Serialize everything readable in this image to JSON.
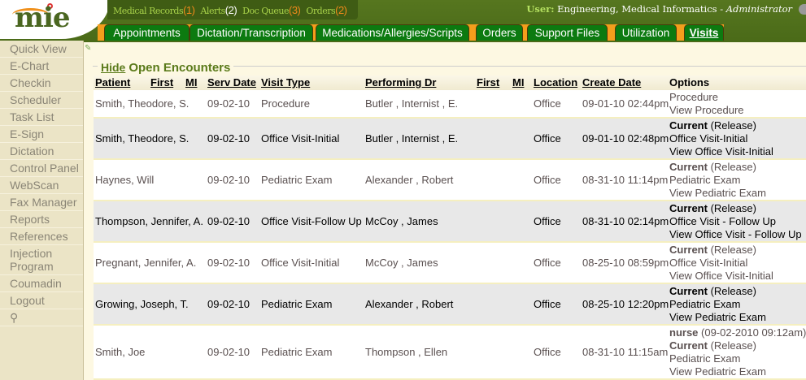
{
  "header": {
    "logo": "mie",
    "topnav": [
      {
        "label": "Medical Records",
        "count": "(1)"
      },
      {
        "label": "Alerts",
        "count": "(2)"
      },
      {
        "label": "Doc Queue",
        "count": "(3)"
      },
      {
        "label": "Orders",
        "count": "(2)"
      }
    ],
    "user_label": "User:",
    "user_name": "Engineering, Medical Informatics - ",
    "user_role": "Administrator"
  },
  "tabs": [
    "Appointments",
    "Dictation/Transcription",
    "Medications/Allergies/Scripts",
    "Orders",
    "Support Files",
    "Utilization",
    "Visits"
  ],
  "active_tab": "Visits",
  "sidebar": [
    "Quick View",
    "E-Chart",
    "Checkin",
    "Scheduler",
    "Task List",
    "E-Sign",
    "Dictation",
    "Control Panel",
    "WebScan",
    "Fax Manager",
    "Reports",
    "References",
    "Injection Program",
    "Coumadin",
    "Logout"
  ],
  "section": {
    "hide": "Hide",
    "title": "Open Encounters"
  },
  "columns": [
    "Patient",
    "First",
    "MI",
    "Serv Date",
    "Visit Type",
    "Performing Dr",
    "First",
    "MI",
    "Location",
    "Create Date",
    "Options"
  ],
  "rows": [
    {
      "patient": "Smith, Theodore, S.",
      "serv": "09-02-10",
      "type": "Procedure",
      "dr": "Butler , Internist , E.",
      "loc": "Office",
      "created": "09-01-10 02:44pm",
      "options": [
        {
          "text": "Procedure"
        },
        {
          "text": "View Procedure"
        }
      ]
    },
    {
      "patient": "Smith, Theodore, S.",
      "serv": "09-02-10",
      "type": "Office Visit-Initial",
      "dr": "Butler , Internist , E.",
      "loc": "Office",
      "created": "09-01-10 02:48pm",
      "options": [
        {
          "bold": "Current",
          "text": " (Release)"
        },
        {
          "text": "Office Visit-Initial"
        },
        {
          "text": "View Office Visit-Initial"
        }
      ]
    },
    {
      "patient": "Haynes, Will",
      "serv": "09-02-10",
      "type": "Pediatric Exam",
      "dr": "Alexander , Robert",
      "loc": "Office",
      "created": "08-31-10 11:14pm",
      "options": [
        {
          "bold": "Current",
          "text": " (Release)"
        },
        {
          "text": "Pediatric Exam"
        },
        {
          "text": "View Pediatric Exam"
        }
      ]
    },
    {
      "patient": "Thompson, Jennifer, A.",
      "serv": "09-02-10",
      "type": "Office Visit-Follow Up",
      "dr": "McCoy , James",
      "loc": "Office",
      "created": "08-31-10 02:14pm",
      "options": [
        {
          "bold": "Current",
          "text": " (Release)"
        },
        {
          "text": "Office Visit - Follow Up"
        },
        {
          "text": "View Office Visit - Follow Up"
        }
      ]
    },
    {
      "patient": "Pregnant, Jennifer, A.",
      "serv": "09-02-10",
      "type": "Office Visit-Initial",
      "dr": "McCoy , James",
      "loc": "Office",
      "created": "08-25-10 08:59pm",
      "options": [
        {
          "bold": "Current",
          "text": " (Release)"
        },
        {
          "text": "Office Visit-Initial"
        },
        {
          "text": "View Office Visit-Initial"
        }
      ]
    },
    {
      "patient": "Growing, Joseph, T.",
      "serv": "09-02-10",
      "type": "Pediatric Exam",
      "dr": "Alexander , Robert",
      "loc": "Office",
      "created": "08-25-10 12:20pm",
      "options": [
        {
          "bold": "Current",
          "text": " (Release)"
        },
        {
          "text": "Pediatric Exam"
        },
        {
          "text": "View Pediatric Exam"
        }
      ]
    },
    {
      "patient": "Smith, Joe",
      "serv": "09-02-10",
      "type": "Pediatric Exam",
      "dr": "Thompson , Ellen",
      "loc": "Office",
      "created": "08-31-10 11:15am",
      "options": [
        {
          "bold": "nurse",
          "text": " (09-02-2010 09:12am)"
        },
        {
          "bold": "Current",
          "text": " (Release)"
        },
        {
          "text": "Pediatric Exam"
        },
        {
          "text": "View Pediatric Exam"
        }
      ]
    }
  ]
}
